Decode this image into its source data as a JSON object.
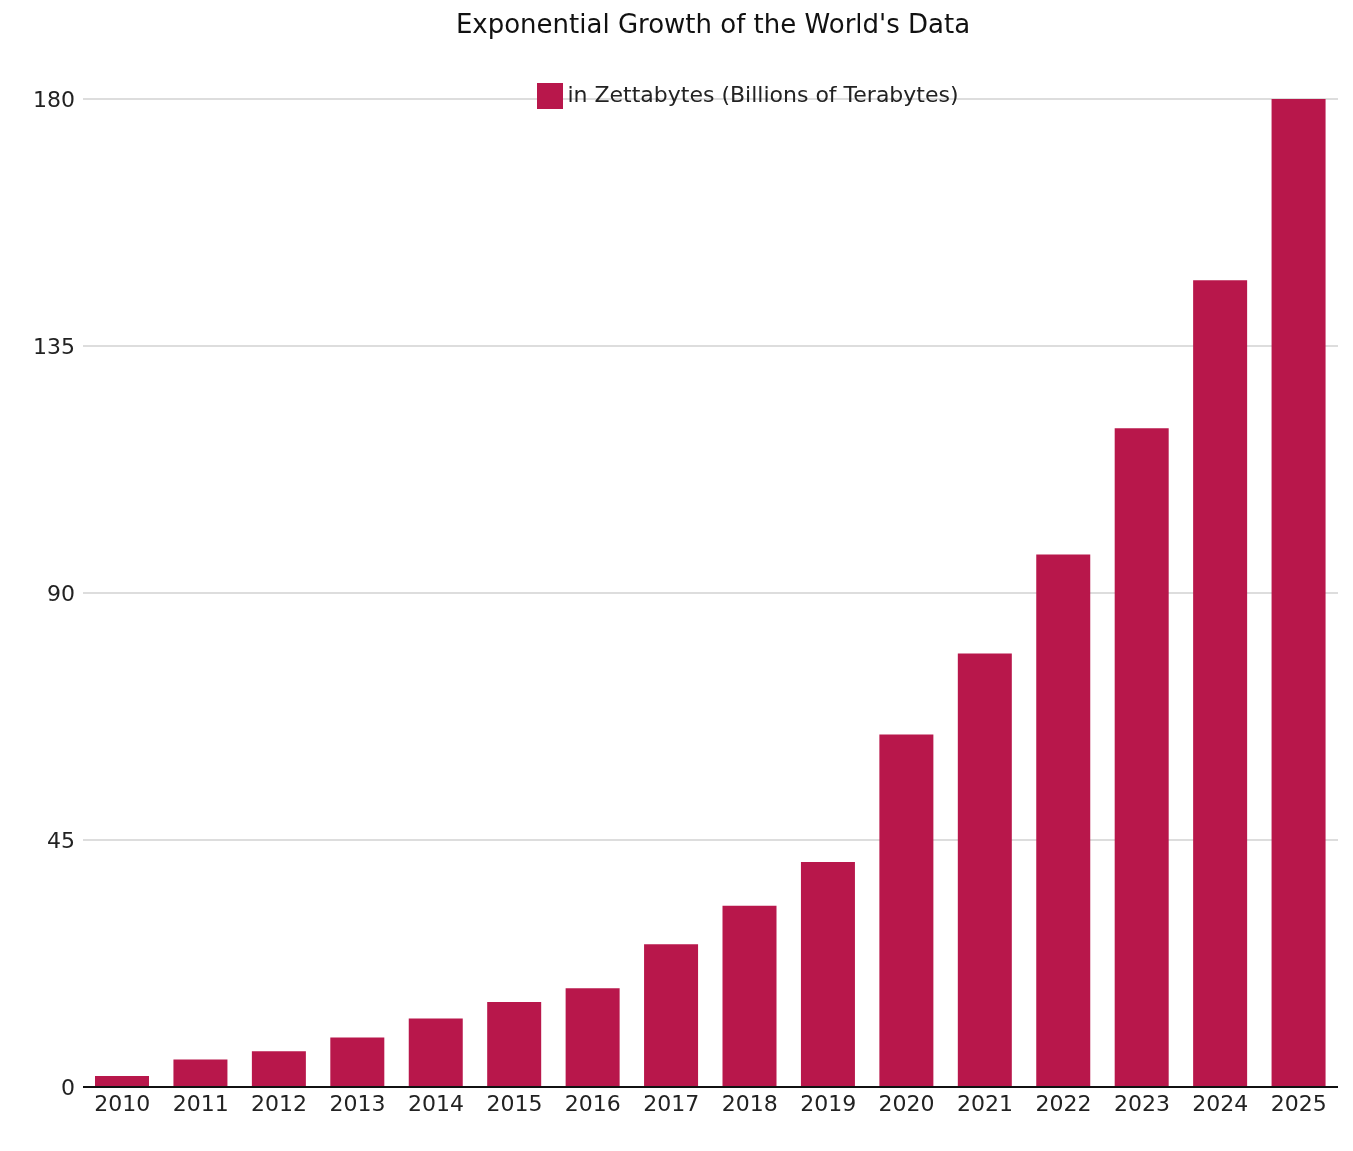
{
  "chart_data": {
    "type": "bar",
    "title": "Exponential Growth of the World's Data",
    "categories": [
      "2010",
      "2011",
      "2012",
      "2013",
      "2014",
      "2015",
      "2016",
      "2017",
      "2018",
      "2019",
      "2020",
      "2021",
      "2022",
      "2023",
      "2024",
      "2025"
    ],
    "series": [
      {
        "name": "in Zettabytes (Billions of Terabytes)",
        "color": "#b8174b",
        "values": [
          2,
          5,
          6.5,
          9,
          12.5,
          15.5,
          18,
          26,
          33,
          41,
          64.2,
          79,
          97,
          120,
          147,
          180
        ]
      }
    ],
    "ylim": [
      0,
      180
    ],
    "yticks": [
      0,
      45,
      90,
      135,
      180
    ],
    "grid": "y",
    "legend": "top"
  }
}
